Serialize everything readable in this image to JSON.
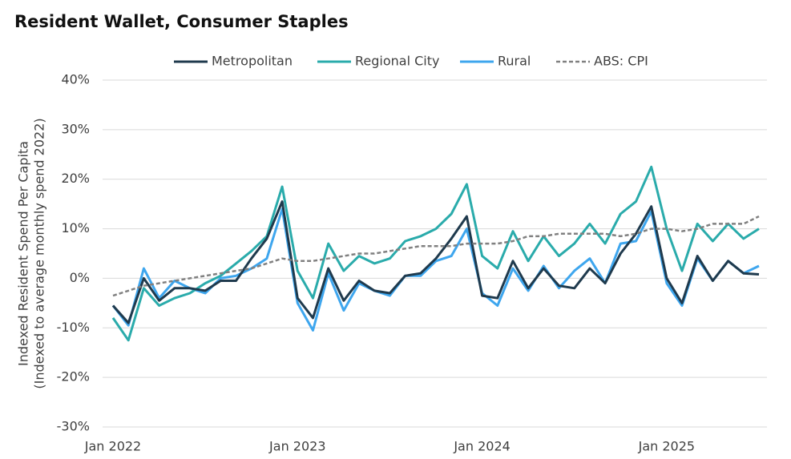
{
  "chart_data": {
    "type": "line",
    "title": "Resident Wallet, Consumer Staples",
    "ylabel": [
      "Indexed Resident Spend Per Capita",
      "(Indexed to average monthly spend 2022)"
    ],
    "categories": [
      "Jan 2022",
      null,
      null,
      null,
      null,
      null,
      null,
      null,
      null,
      null,
      null,
      null,
      "Jan 2023",
      null,
      null,
      null,
      null,
      null,
      null,
      null,
      null,
      null,
      null,
      null,
      "Jan 2024",
      null,
      null,
      null,
      null,
      null,
      null,
      null,
      null,
      null,
      null,
      null,
      "Jan 2025",
      null,
      null,
      null,
      null,
      null,
      null
    ],
    "series": [
      {
        "name": "Metropolitan",
        "color": "#1f3a4d",
        "dashed": false,
        "values": [
          -5.5,
          -9,
          0,
          -4.5,
          -2,
          -2,
          -2.5,
          -0.5,
          -0.5,
          4,
          8,
          15.5,
          -4,
          -8,
          2,
          -4.5,
          -0.5,
          -2.5,
          -3,
          0.5,
          1,
          4,
          8,
          12.5,
          -3.5,
          -4,
          3.5,
          -2,
          2,
          -1.5,
          -2,
          2,
          -1,
          5,
          9,
          14.5,
          0,
          -5,
          4.5,
          -0.5,
          3.5,
          1,
          0.8
        ]
      },
      {
        "name": "Regional City",
        "color": "#2aabab",
        "dashed": false,
        "values": [
          -8,
          -12.5,
          -2,
          -5.5,
          -4,
          -3,
          -1,
          0.5,
          3,
          5.5,
          8.5,
          18.5,
          1.5,
          -4,
          7,
          1.5,
          4.5,
          3,
          4,
          7.5,
          8.5,
          10,
          13,
          19,
          4.5,
          2,
          9.5,
          3.5,
          8.5,
          4.5,
          7,
          11,
          7,
          13,
          15.5,
          22.5,
          10,
          1.5,
          11,
          7.5,
          11,
          8,
          10
        ]
      },
      {
        "name": "Rural",
        "color": "#3ea6ee",
        "dashed": false,
        "values": [
          -5.5,
          -9.5,
          2,
          -4,
          -0.5,
          -2,
          -3,
          0,
          0.5,
          2,
          4,
          14,
          -5,
          -10.5,
          1,
          -6.5,
          -1,
          -2.5,
          -3.5,
          0.5,
          0.5,
          3.5,
          4.5,
          10,
          -3,
          -5.5,
          2,
          -2.5,
          2.5,
          -2,
          1.5,
          4,
          -1,
          7,
          7.5,
          13.5,
          -1,
          -5.5,
          4,
          -0.5,
          3.5,
          1,
          2.5
        ]
      },
      {
        "name": "ABS: CPI",
        "color": "#808080",
        "dashed": true,
        "values": [
          -3.5,
          -2.5,
          -1.5,
          -1,
          -0.5,
          0,
          0.5,
          1,
          1.5,
          2,
          3,
          4,
          3.5,
          3.5,
          4,
          4.5,
          5,
          5,
          5.5,
          6,
          6.5,
          6.5,
          6.5,
          7,
          7,
          7,
          7.5,
          8.5,
          8.5,
          9,
          9,
          9,
          9,
          8.5,
          9,
          10,
          10,
          9.5,
          10,
          11,
          11,
          11,
          12.5
        ]
      }
    ],
    "ylim": [
      -30,
      40
    ],
    "yticks": [
      {
        "value": -30,
        "label": "-30%"
      },
      {
        "value": -20,
        "label": "-20%"
      },
      {
        "value": -10,
        "label": "-10%"
      },
      {
        "value": 0,
        "label": "0%"
      },
      {
        "value": 10,
        "label": "10%"
      },
      {
        "value": 20,
        "label": "20%"
      },
      {
        "value": 30,
        "label": "30%"
      },
      {
        "value": 40,
        "label": "40%"
      }
    ],
    "grid": true,
    "legend": "top"
  }
}
